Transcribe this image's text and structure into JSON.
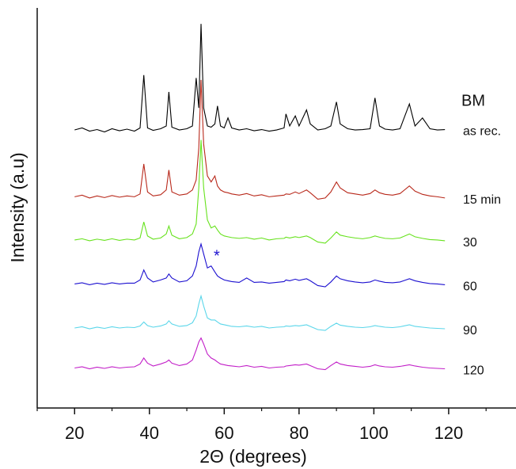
{
  "chart_data": {
    "type": "line",
    "xlabel": "2Θ (degrees)",
    "ylabel": "Intensity (a.u)",
    "xlim": [
      10,
      138
    ],
    "ylim": [
      0,
      100
    ],
    "xticks": [
      20,
      40,
      60,
      80,
      100,
      120
    ],
    "xminorticks": [
      10,
      30,
      50,
      70,
      90,
      110,
      130
    ],
    "annotations": [
      "BM",
      "*"
    ],
    "x": [
      20,
      22,
      24,
      26,
      28,
      30,
      32,
      34,
      36,
      37.5,
      38.5,
      39.5,
      41,
      43,
      44.5,
      45.2,
      46,
      48,
      50,
      51.5,
      52.5,
      53.2,
      53.8,
      54.5,
      55.5,
      56.5,
      57.5,
      58.2,
      59,
      60,
      61,
      62,
      64,
      66,
      68,
      70,
      72,
      74,
      76,
      76.5,
      77.5,
      79,
      80,
      82,
      83,
      85,
      87,
      88.5,
      90,
      91,
      93,
      95,
      97,
      99,
      100.3,
      101.5,
      103,
      105,
      107,
      109.5,
      111,
      113,
      115,
      117,
      119
    ],
    "series": [
      {
        "name": "as rec.",
        "color": "#000000",
        "values": [
          69.5,
          70,
          69.2,
          69.6,
          69,
          69.8,
          69.3,
          69.7,
          69.2,
          70,
          83.2,
          70,
          69.4,
          69.8,
          70.5,
          79,
          70.2,
          69.5,
          69.8,
          70.5,
          82.5,
          75,
          96,
          75,
          70.5,
          70.2,
          71,
          75.5,
          70.5,
          70,
          72.5,
          70,
          69.5,
          69.8,
          69.3,
          69.6,
          69.2,
          69.5,
          70,
          73.5,
          70.5,
          73,
          70.5,
          74.5,
          71,
          69.5,
          69.8,
          70.5,
          76.5,
          71,
          69.8,
          69.5,
          69.6,
          69.8,
          77.5,
          70.5,
          69.7,
          69.5,
          69.8,
          76,
          70.5,
          72.5,
          69.8,
          69.5,
          69.6
        ]
      },
      {
        "name": "15 min",
        "color": "#b8281a",
        "values": [
          52.8,
          53.2,
          52.5,
          53,
          52.6,
          53.1,
          52.7,
          53,
          52.8,
          53.5,
          61,
          54,
          53,
          53.3,
          54.5,
          59.5,
          54,
          53.2,
          53.5,
          54.5,
          57,
          65,
          82,
          66,
          58,
          56.5,
          58,
          55.5,
          54.5,
          54,
          53.8,
          53.5,
          53.2,
          53.6,
          53,
          53.3,
          52.8,
          53,
          53.2,
          53.5,
          53.4,
          54,
          53.6,
          54.5,
          53.8,
          52.2,
          52.5,
          54,
          56.5,
          55,
          53.8,
          53.5,
          53.2,
          53.6,
          54.5,
          53.8,
          53.4,
          53.2,
          53.6,
          55.5,
          54.2,
          53.4,
          53,
          52.8,
          52.5
        ]
      },
      {
        "name": "30",
        "color": "#66e21c",
        "values": [
          42,
          42.3,
          41.8,
          42.2,
          41.9,
          42.3,
          41.9,
          42.2,
          42,
          42.5,
          46.5,
          43,
          42.2,
          42.5,
          43.5,
          45.5,
          43.2,
          42.3,
          42.6,
          43.5,
          46,
          55,
          67,
          55,
          47,
          45,
          45.5,
          44.5,
          43.5,
          43,
          42.8,
          42.6,
          42.4,
          42.6,
          42.2,
          42.5,
          42,
          42.3,
          42.4,
          42.7,
          42.5,
          42.8,
          42.6,
          43,
          42.6,
          41.5,
          41.2,
          42.5,
          44,
          43.2,
          42.8,
          42.5,
          42.3,
          42.6,
          43,
          42.7,
          42.4,
          42.3,
          42.5,
          43.5,
          42.8,
          42.4,
          42.1,
          42,
          41.8
        ]
      },
      {
        "name": "60",
        "color": "#1c10d0",
        "values": [
          31,
          31.3,
          30.8,
          31.2,
          30.9,
          31.3,
          31,
          31.2,
          31.2,
          32,
          34.5,
          32.5,
          31.5,
          32,
          32.5,
          33.5,
          32.5,
          31.5,
          31.8,
          33,
          35.5,
          39,
          41,
          38.5,
          35,
          35.5,
          34,
          33,
          32.5,
          32,
          31.8,
          31.6,
          31.4,
          32.5,
          31.4,
          31.5,
          31.2,
          31.4,
          31.6,
          32,
          31.8,
          32.2,
          31.9,
          32.3,
          31.8,
          30.6,
          30.3,
          31.5,
          33,
          32.3,
          31.8,
          31.5,
          31.3,
          31.5,
          32,
          31.7,
          31.4,
          31.3,
          31.5,
          32.3,
          31.8,
          31.4,
          31.1,
          31,
          30.8
        ]
      },
      {
        "name": "90",
        "color": "#5ad6ea",
        "values": [
          20,
          20.3,
          19.8,
          20.2,
          19.9,
          20.3,
          20,
          20.2,
          20.1,
          20.5,
          21.5,
          20.6,
          20.2,
          20.5,
          21,
          21.8,
          21,
          20.4,
          20.6,
          21.3,
          23,
          26,
          28,
          25.5,
          22.5,
          22,
          22,
          21.5,
          21,
          20.8,
          20.6,
          20.4,
          20.3,
          20.5,
          20.2,
          20.4,
          20,
          20.2,
          20.3,
          20.5,
          20.4,
          20.6,
          20.5,
          20.8,
          20.4,
          19.6,
          19.4,
          20.4,
          21.2,
          20.7,
          20.4,
          20.2,
          20.1,
          20.3,
          20.6,
          20.4,
          20.2,
          20.1,
          20.3,
          20.8,
          20.4,
          20.2,
          20,
          19.9,
          19.8
        ]
      },
      {
        "name": "120",
        "color": "#c21ec8",
        "values": [
          10,
          10.3,
          9.8,
          10.2,
          9.9,
          10.3,
          10,
          10.2,
          10.3,
          11,
          12.5,
          11.2,
          10.5,
          11,
          11.5,
          12,
          11.2,
          10.6,
          11,
          12,
          14.5,
          16.5,
          17.5,
          16,
          13.5,
          12.5,
          12,
          11.5,
          11,
          10.8,
          10.6,
          10.5,
          10.3,
          10.6,
          10.2,
          10.4,
          10,
          10.2,
          10.3,
          10.5,
          10.6,
          10.8,
          10.7,
          11,
          10.6,
          9.8,
          9.6,
          10.6,
          11.5,
          11,
          10.6,
          10.4,
          10.2,
          10.4,
          10.8,
          10.5,
          10.3,
          10.2,
          10.4,
          10.8,
          10.5,
          10.2,
          10,
          9.9,
          9.8
        ]
      }
    ]
  }
}
